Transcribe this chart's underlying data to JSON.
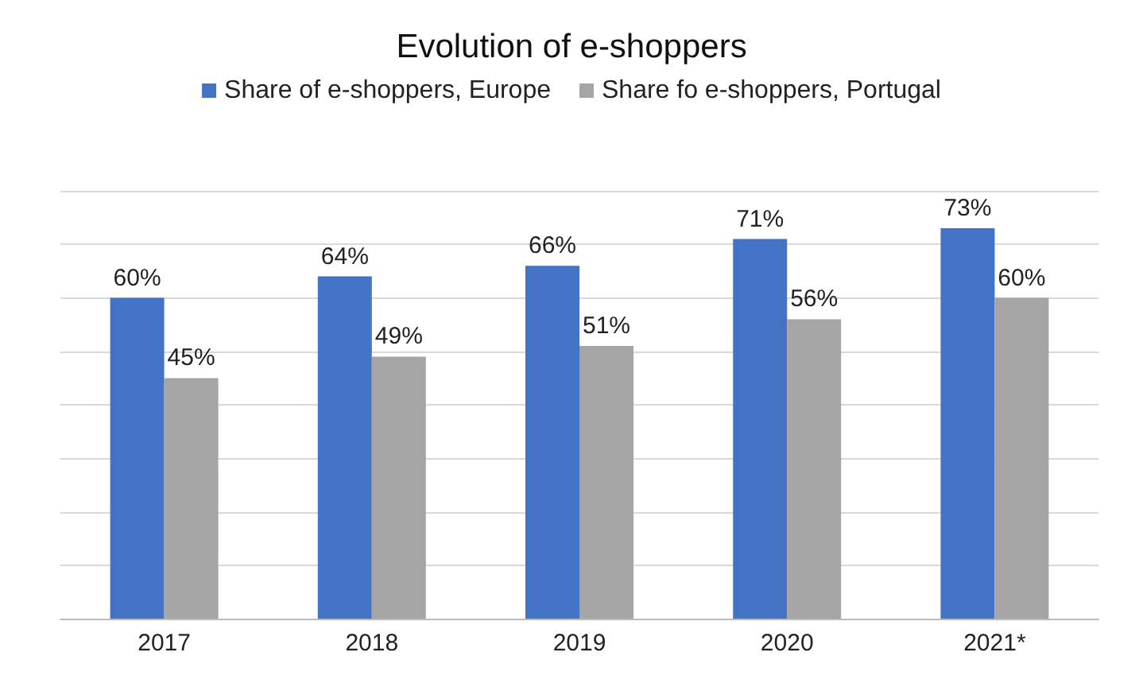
{
  "chart_data": {
    "type": "bar",
    "title": "Evolution of e-shoppers",
    "categories": [
      "2017",
      "2018",
      "2019",
      "2020",
      "2021*"
    ],
    "series": [
      {
        "name": "Share of e-shoppers, Europe",
        "color": "#4472c4",
        "values": [
          60,
          64,
          66,
          71,
          73
        ],
        "value_labels": [
          "60%",
          "64%",
          "66%",
          "71%",
          "73%"
        ]
      },
      {
        "name": "Share fo e-shoppers, Portugal",
        "color": "#a5a5a5",
        "values": [
          45,
          49,
          51,
          56,
          60
        ],
        "value_labels": [
          "45%",
          "49%",
          "51%",
          "56%",
          "60%"
        ]
      }
    ],
    "ylim": [
      0,
      80
    ],
    "yticks": [
      {
        "value": 0,
        "label": null
      },
      {
        "value": 10,
        "label": null
      },
      {
        "value": 20,
        "label": null
      },
      {
        "value": 30,
        "label": null
      },
      {
        "value": 40,
        "label": null
      },
      {
        "value": 50,
        "label": null
      },
      {
        "value": 60,
        "label": null
      },
      {
        "value": 70,
        "label": null
      },
      {
        "value": 80,
        "label": null
      }
    ],
    "tick_labels": "x",
    "grid": "y",
    "legend": "top"
  }
}
